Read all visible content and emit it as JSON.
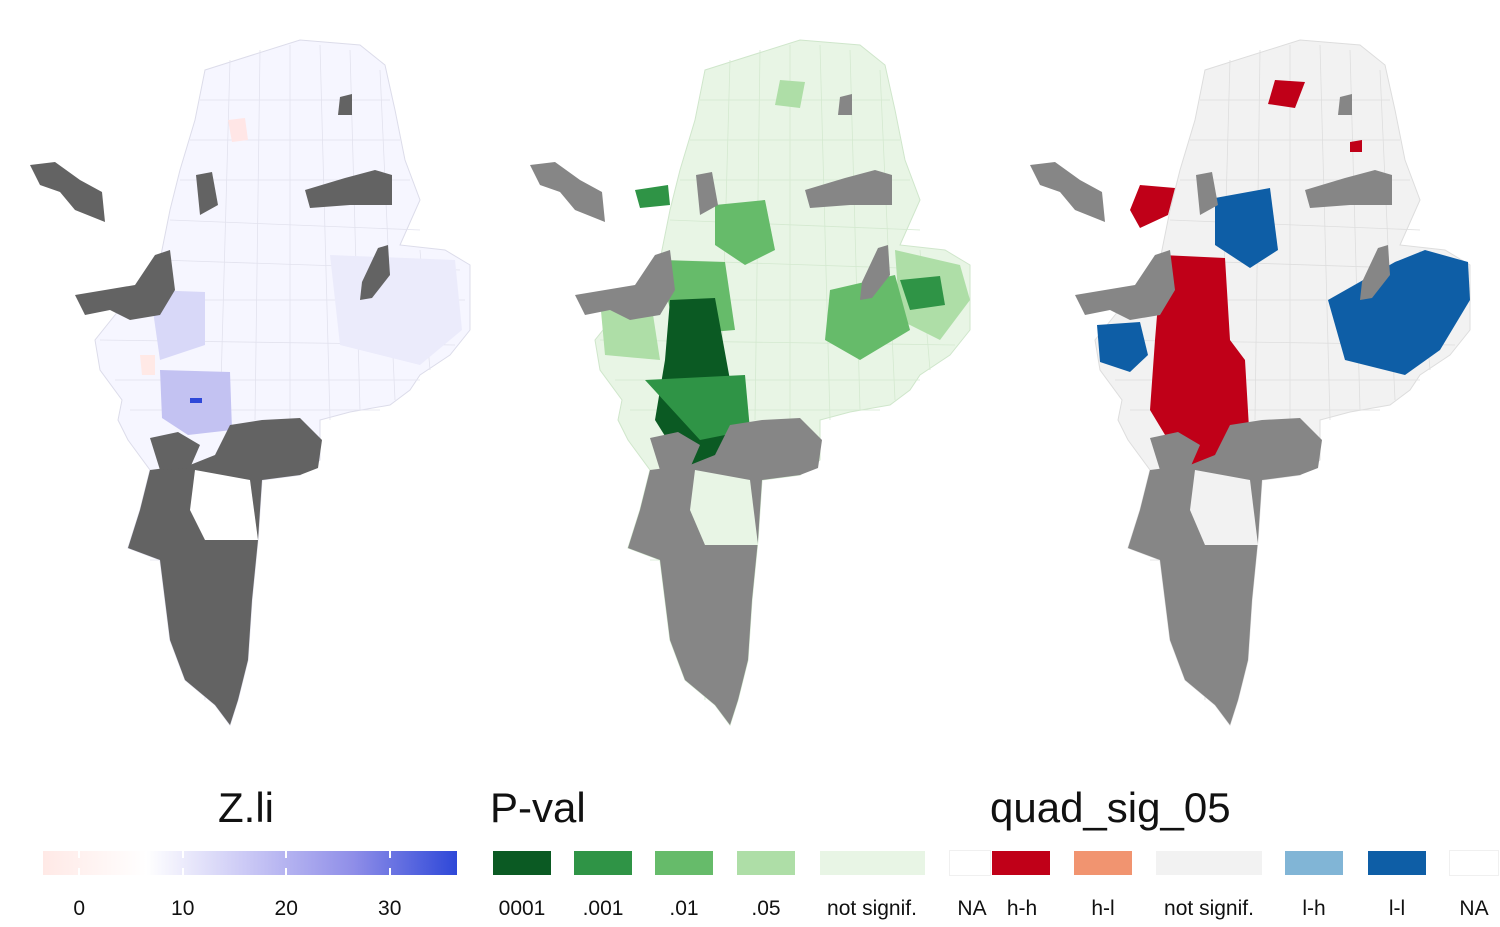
{
  "maps": [
    {
      "name": "zli-map",
      "base_fill": "#f6f6ff",
      "edge": "#dcdcea",
      "na_fill": "#636363"
    },
    {
      "name": "pval-map",
      "base_fill": "#e8f5e5",
      "edge": "#cfe6cb",
      "na_fill": "#868686"
    },
    {
      "name": "quad-map",
      "base_fill": "#f2f2f2",
      "edge": "#dddddd",
      "na_fill": "#868686"
    }
  ],
  "legends": {
    "zli": {
      "title": "Z.li",
      "scale": {
        "min": -3.5,
        "max": 36.5,
        "colors": [
          "#ffe9e6",
          "#ffffff",
          "#c9c7f5",
          "#8f8ee8",
          "#2e48d8"
        ]
      },
      "ticks": [
        {
          "value": 0,
          "label": "0"
        },
        {
          "value": 10,
          "label": "10"
        },
        {
          "value": 20,
          "label": "20"
        },
        {
          "value": 30,
          "label": "30"
        }
      ]
    },
    "pval": {
      "title": "P-val",
      "items": [
        {
          "label": "0001",
          "color": "#0b5a23"
        },
        {
          "label": ".001",
          "color": "#2f9446"
        },
        {
          "label": ".01",
          "color": "#66bb6a"
        },
        {
          "label": ".05",
          "color": "#aedea7"
        },
        {
          "label": "not signif.",
          "color": "#e8f5e5"
        },
        {
          "label": "NA",
          "color": "#ffffff"
        }
      ]
    },
    "quad": {
      "title": "quad_sig_05",
      "items": [
        {
          "label": "h-h",
          "color": "#c00018"
        },
        {
          "label": "h-l",
          "color": "#f19470"
        },
        {
          "label": "not signif.",
          "color": "#f2f2f2"
        },
        {
          "label": "l-h",
          "color": "#81b5d6"
        },
        {
          "label": "l-l",
          "color": "#0e5ea6"
        },
        {
          "label": "NA",
          "color": "#ffffff"
        }
      ]
    }
  }
}
